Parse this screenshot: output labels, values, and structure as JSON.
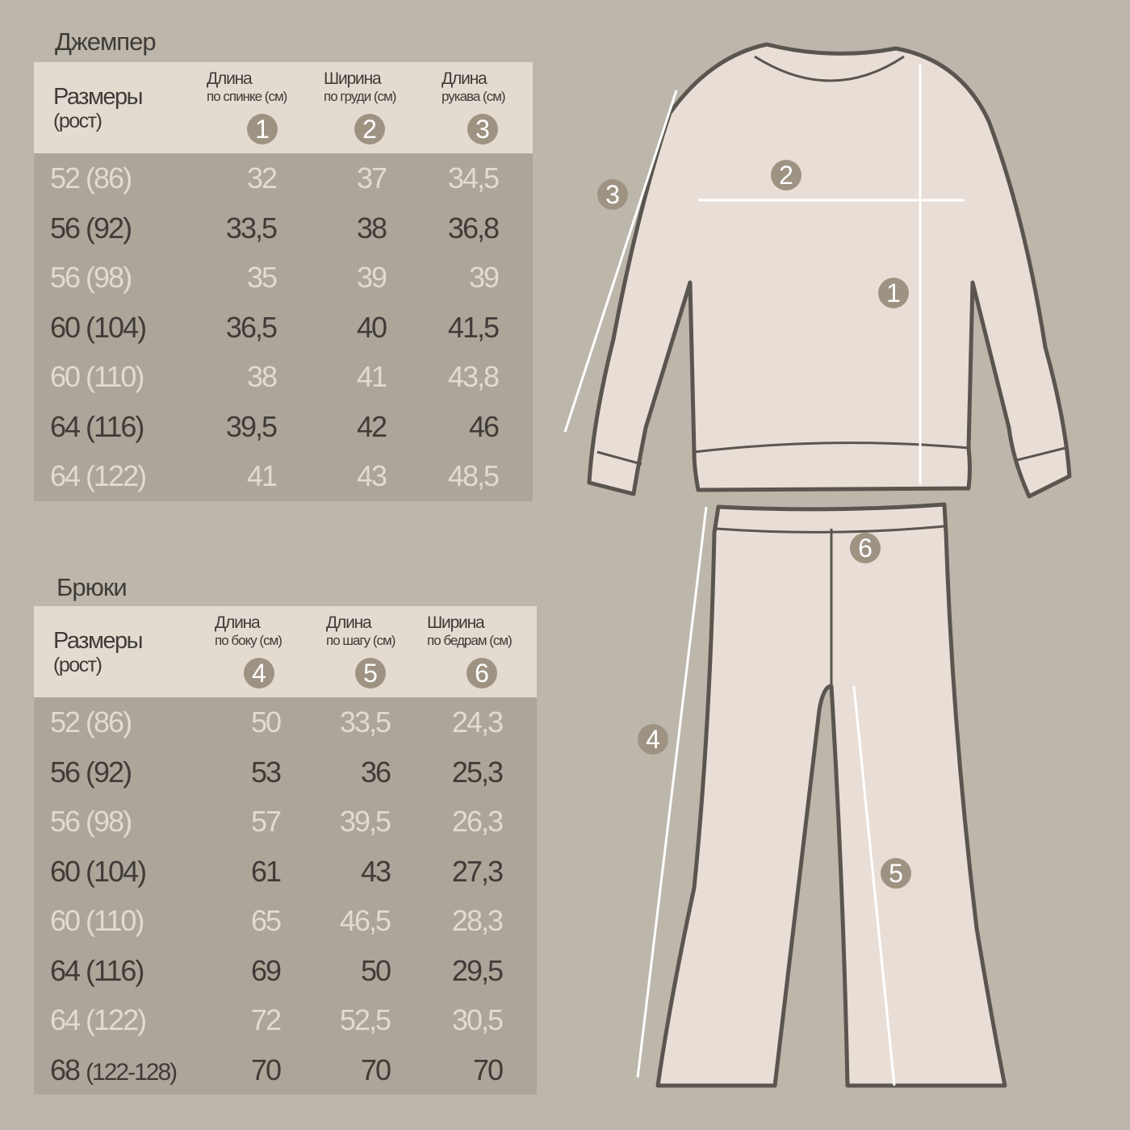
{
  "jumper": {
    "title": "Джемпер",
    "size_label": "Размеры",
    "size_sub": "(рост)",
    "columns": [
      {
        "label": "Длина",
        "sub": "по спинке (см)",
        "badge": "1"
      },
      {
        "label": "Ширина",
        "sub": "по груди (см)",
        "badge": "2"
      },
      {
        "label": "Длина",
        "sub": "рукава (см)",
        "badge": "3"
      }
    ],
    "rows": [
      {
        "size": "52 (86)",
        "v": [
          "32",
          "37",
          "34,5"
        ]
      },
      {
        "size": "56 (92)",
        "v": [
          "33,5",
          "38",
          "36,8"
        ]
      },
      {
        "size": "56 (98)",
        "v": [
          "35",
          "39",
          "39"
        ]
      },
      {
        "size": "60 (104)",
        "v": [
          "36,5",
          "40",
          "41,5"
        ]
      },
      {
        "size": "60 (110)",
        "v": [
          "38",
          "41",
          "43,8"
        ]
      },
      {
        "size": "64 (116)",
        "v": [
          "39,5",
          "42",
          "46"
        ]
      },
      {
        "size": "64 (122)",
        "v": [
          "41",
          "43",
          "48,5"
        ]
      }
    ]
  },
  "pants": {
    "title": "Брюки",
    "size_label": "Размеры",
    "size_sub": "(рост)",
    "columns": [
      {
        "label": "Длина",
        "sub": "по боку (см)",
        "badge": "4"
      },
      {
        "label": "Длина",
        "sub": "по шагу (см)",
        "badge": "5"
      },
      {
        "label": "Ширина",
        "sub": "по бедрам (см)",
        "badge": "6"
      }
    ],
    "rows": [
      {
        "size": "52 (86)",
        "v": [
          "50",
          "33,5",
          "24,3"
        ]
      },
      {
        "size": "56 (92)",
        "v": [
          "53",
          "36",
          "25,3"
        ]
      },
      {
        "size": "56 (98)",
        "v": [
          "57",
          "39,5",
          "26,3"
        ]
      },
      {
        "size": "60 (104)",
        "v": [
          "61",
          "43",
          "27,3"
        ]
      },
      {
        "size": "60 (110)",
        "v": [
          "65",
          "46,5",
          "28,3"
        ]
      },
      {
        "size": "64 (116)",
        "v": [
          "69",
          "50",
          "29,5"
        ]
      },
      {
        "size": "64 (122)",
        "v": [
          "72",
          "52,5",
          "30,5"
        ]
      },
      {
        "size": "68",
        "size_small": "(122-128)",
        "v": [
          "70",
          "70",
          "70"
        ]
      }
    ]
  },
  "diagram_badges": [
    "1",
    "2",
    "3",
    "4",
    "5",
    "6"
  ],
  "colors": {
    "background": "#bdb6aa",
    "header": "#e3dad0",
    "table_body": "#ada599",
    "badge": "#9e9383",
    "text_dark": "#3f3c38",
    "garment_fill": "#e8ded6",
    "outline": "#5a564f"
  }
}
